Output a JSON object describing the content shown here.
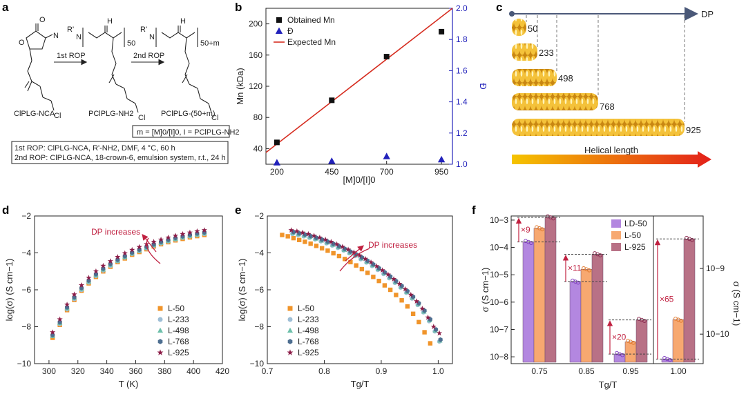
{
  "panels": {
    "a": "a",
    "b": "b",
    "c": "c",
    "d": "d",
    "e": "e",
    "f": "f"
  },
  "scheme": {
    "names": [
      "ClPLG-NCA",
      "PClPLG-NH2",
      "PClPLG-(50+m)"
    ],
    "r1": "1st ROP",
    "r2": "2nd ROP",
    "sub1": "50",
    "sub2": "50+m",
    "eq": "m = [M]0/[I]0,  I = PClPLG-NH2",
    "cond1": "1st ROP: ClPLG-NCA, R'-NH2, DMF, 4 °C, 60 h",
    "cond2": "2nd ROP: ClPLG-NCA, 18-crown-6, emulsion system, r.t., 24 h",
    "rp": "R'",
    "h": "H",
    "n": "N",
    "o": "O",
    "cl": "Cl"
  },
  "colors": {
    "l50": "#f0942a",
    "l233": "#9ebed6",
    "l498": "#6dbfaa",
    "l768": "#4d6e90",
    "l925": "#8c1d48",
    "red": "#d62d20",
    "blue": "#2222bb",
    "ld": "#b387e0",
    "lbar": "#f7a870",
    "rbar": "#b87186",
    "arrow": "#c02040",
    "spring": "#e0a520"
  },
  "chart_data": [
    {
      "id": "b",
      "type": "scatter",
      "xlabel": "[M]0/[I]0",
      "ylabel": "Mn (kDa)",
      "y2label": "Đ",
      "xlim": [
        150,
        1000
      ],
      "ylim": [
        20,
        220
      ],
      "y2lim": [
        1.0,
        2.0
      ],
      "xticks": [
        "200",
        "450",
        "700",
        "950"
      ],
      "yticks": [
        "40",
        "80",
        "120",
        "160",
        "200"
      ],
      "y2ticks": [
        "1.0",
        "1.2",
        "1.4",
        "1.6",
        "1.8",
        "2.0"
      ],
      "series": [
        {
          "name": "Obtained Mn",
          "x": [
            200,
            450,
            700,
            950
          ],
          "y": [
            48,
            102,
            158,
            190
          ]
        },
        {
          "name": "Đ",
          "x": [
            200,
            450,
            700,
            950
          ],
          "y": [
            1.01,
            1.02,
            1.05,
            1.03
          ]
        },
        {
          "name": "Expected Mn",
          "x": [
            150,
            1000
          ],
          "y": [
            35,
            224
          ]
        }
      ]
    },
    {
      "id": "c",
      "type": "diagram",
      "axis": "DP",
      "caption": "Helical length",
      "labels": [
        "50",
        "233",
        "498",
        "768",
        "925"
      ]
    },
    {
      "id": "d",
      "type": "scatter",
      "xlabel": "T (K)",
      "ylabel": "log(σ) (S cm−1)",
      "xlim": [
        290,
        420
      ],
      "ylim": [
        -10,
        -2
      ],
      "xticks": [
        "300",
        "320",
        "340",
        "360",
        "380",
        "400",
        "420"
      ],
      "yticks": [
        "−10",
        "−8",
        "−6",
        "−4",
        "−2"
      ],
      "annotation": "DP increases",
      "legend": [
        "L-50",
        "L-233",
        "L-498",
        "L-768",
        "L-925"
      ],
      "x": [
        302.5,
        307.5,
        312.5,
        317.5,
        322.5,
        327.5,
        332.5,
        337.5,
        342.5,
        347.5,
        352.5,
        357.5,
        362.5,
        367.5,
        372.5,
        377.5,
        382.5,
        387.5,
        392.5,
        397.5,
        402.5,
        407.5
      ],
      "series": [
        {
          "name": "L-50",
          "values": [
            -8.6,
            -7.9,
            -7.1,
            -6.55,
            -6.05,
            -5.65,
            -5.3,
            -5.0,
            -4.75,
            -4.5,
            -4.3,
            -4.1,
            -3.95,
            -3.8,
            -3.65,
            -3.53,
            -3.42,
            -3.32,
            -3.24,
            -3.16,
            -3.09,
            -3.03
          ]
        },
        {
          "name": "L-233",
          "values": [
            -8.5,
            -7.85,
            -7.05,
            -6.5,
            -6.0,
            -5.6,
            -5.25,
            -4.95,
            -4.7,
            -4.45,
            -4.25,
            -4.05,
            -3.9,
            -3.75,
            -3.6,
            -3.48,
            -3.37,
            -3.27,
            -3.18,
            -3.1,
            -3.03,
            -2.97
          ]
        },
        {
          "name": "L-498",
          "values": [
            -8.5,
            -7.8,
            -7.0,
            -6.45,
            -5.95,
            -5.55,
            -5.2,
            -4.9,
            -4.65,
            -4.42,
            -4.22,
            -4.03,
            -3.87,
            -3.72,
            -3.58,
            -3.45,
            -3.34,
            -3.24,
            -3.15,
            -3.07,
            -3.0,
            -2.94
          ]
        },
        {
          "name": "L-768",
          "values": [
            -8.45,
            -7.75,
            -6.95,
            -6.4,
            -5.9,
            -5.5,
            -5.15,
            -4.85,
            -4.6,
            -4.37,
            -4.17,
            -3.98,
            -3.82,
            -3.67,
            -3.53,
            -3.4,
            -3.29,
            -3.19,
            -3.1,
            -3.02,
            -2.95,
            -2.89
          ]
        },
        {
          "name": "L-925",
          "values": [
            -8.3,
            -7.6,
            -6.8,
            -6.25,
            -5.75,
            -5.35,
            -5.0,
            -4.7,
            -4.45,
            -4.22,
            -4.02,
            -3.84,
            -3.68,
            -3.53,
            -3.4,
            -3.28,
            -3.17,
            -3.07,
            -2.98,
            -2.9,
            -2.83,
            -2.77
          ]
        }
      ]
    },
    {
      "id": "e",
      "type": "scatter",
      "xlabel": "Tg/T",
      "ylabel": "log(σ) (S cm−1)",
      "xlim": [
        0.7,
        1.025
      ],
      "ylim": [
        -10,
        -2
      ],
      "xticks": [
        "0.7",
        "0.8",
        "0.9",
        "1.0"
      ],
      "yticks": [
        "−10",
        "−8",
        "−6",
        "−4",
        "−2"
      ],
      "annotation": "DP increases",
      "legend": [
        "L-50",
        "L-233",
        "L-498",
        "L-768",
        "L-925"
      ],
      "series": [
        {
          "name": "L-50",
          "x": [
            0.726,
            0.736,
            0.746,
            0.756,
            0.766,
            0.776,
            0.786,
            0.796,
            0.806,
            0.816,
            0.826,
            0.836,
            0.846,
            0.856,
            0.866,
            0.876,
            0.886,
            0.896,
            0.906,
            0.916,
            0.926,
            0.936,
            0.946,
            0.956,
            0.966,
            0.976,
            0.986
          ],
          "values": [
            -3.03,
            -3.1,
            -3.2,
            -3.3,
            -3.4,
            -3.5,
            -3.62,
            -3.75,
            -3.88,
            -4.02,
            -4.17,
            -4.33,
            -4.5,
            -4.68,
            -4.88,
            -5.08,
            -5.3,
            -5.52,
            -5.76,
            -6.0,
            -6.28,
            -6.57,
            -6.9,
            -7.3,
            -7.75,
            -8.3,
            -8.9
          ]
        },
        {
          "name": "L-233",
          "x": [
            0.744,
            0.754,
            0.764,
            0.774,
            0.784,
            0.794,
            0.804,
            0.814,
            0.824,
            0.834,
            0.844,
            0.854,
            0.864,
            0.874,
            0.884,
            0.894,
            0.904,
            0.914,
            0.924,
            0.934,
            0.944,
            0.954,
            0.964,
            0.974,
            0.984,
            0.994,
            1.002
          ],
          "values": [
            -2.97,
            -3.03,
            -3.1,
            -3.18,
            -3.27,
            -3.37,
            -3.48,
            -3.6,
            -3.73,
            -3.87,
            -4.02,
            -4.17,
            -4.34,
            -4.52,
            -4.71,
            -4.92,
            -5.14,
            -5.37,
            -5.62,
            -5.88,
            -6.16,
            -6.47,
            -6.82,
            -7.22,
            -7.7,
            -8.25,
            -8.8
          ]
        },
        {
          "name": "L-498",
          "x": [
            0.745,
            0.755,
            0.765,
            0.775,
            0.785,
            0.795,
            0.805,
            0.815,
            0.825,
            0.835,
            0.845,
            0.855,
            0.865,
            0.875,
            0.885,
            0.895,
            0.905,
            0.915,
            0.925,
            0.935,
            0.945,
            0.955,
            0.965,
            0.975,
            0.985,
            0.995,
            1.003
          ],
          "values": [
            -2.92,
            -2.99,
            -3.06,
            -3.14,
            -3.23,
            -3.33,
            -3.44,
            -3.56,
            -3.69,
            -3.83,
            -3.98,
            -4.13,
            -4.3,
            -4.48,
            -4.67,
            -4.88,
            -5.1,
            -5.33,
            -5.58,
            -5.84,
            -6.12,
            -6.43,
            -6.78,
            -7.18,
            -7.65,
            -8.2,
            -8.75
          ]
        },
        {
          "name": "L-768",
          "x": [
            0.746,
            0.756,
            0.766,
            0.776,
            0.786,
            0.796,
            0.806,
            0.816,
            0.826,
            0.836,
            0.846,
            0.856,
            0.866,
            0.876,
            0.886,
            0.896,
            0.906,
            0.916,
            0.926,
            0.936,
            0.946,
            0.956,
            0.966,
            0.976,
            0.986,
            0.996,
            1.004
          ],
          "values": [
            -2.87,
            -2.94,
            -3.01,
            -3.09,
            -3.18,
            -3.28,
            -3.39,
            -3.51,
            -3.64,
            -3.78,
            -3.93,
            -4.08,
            -4.25,
            -4.43,
            -4.62,
            -4.83,
            -5.05,
            -5.28,
            -5.53,
            -5.79,
            -6.07,
            -6.38,
            -6.73,
            -7.13,
            -7.6,
            -8.15,
            -8.7
          ]
        },
        {
          "name": "L-925",
          "x": [
            0.742,
            0.752,
            0.762,
            0.772,
            0.782,
            0.792,
            0.802,
            0.812,
            0.822,
            0.832,
            0.842,
            0.852,
            0.862,
            0.872,
            0.882,
            0.892,
            0.902,
            0.912,
            0.922,
            0.932,
            0.942,
            0.952,
            0.962,
            0.972,
            0.982,
            0.992,
            1.002
          ],
          "values": [
            -2.77,
            -2.83,
            -2.9,
            -2.98,
            -3.07,
            -3.17,
            -3.28,
            -3.4,
            -3.53,
            -3.67,
            -3.82,
            -3.97,
            -4.14,
            -4.32,
            -4.51,
            -4.72,
            -4.94,
            -5.17,
            -5.42,
            -5.68,
            -5.96,
            -6.27,
            -6.62,
            -7.02,
            -7.5,
            -8.0,
            -8.35
          ]
        }
      ]
    },
    {
      "id": "f",
      "type": "bar",
      "xlabel": "Tg/T",
      "ylabel": "σ (S cm−1)",
      "y2label": "σ (S cm−1)",
      "categories": [
        "0.75",
        "0.85",
        "0.95",
        "1.00"
      ],
      "legend": [
        "LD-50",
        "L-50",
        "L-925"
      ],
      "yticks": [
        "10−3",
        "10−4",
        "10−5",
        "10−6",
        "10−7",
        "10−8"
      ],
      "y2ticks": [
        "10−9",
        "10−10"
      ],
      "log_ylim_left": [
        -8.25,
        -2.85
      ],
      "log_ylim_right": [
        -10.45,
        -8.2
      ],
      "values_log": [
        [
          -3.8,
          -3.3,
          -2.9
        ],
        [
          -5.25,
          -4.8,
          -4.25
        ],
        [
          -7.9,
          -7.45,
          -6.65
        ],
        [
          -10.38,
          -9.78,
          -8.55
        ]
      ],
      "folds": [
        "×9",
        "×11",
        "×20",
        "×65"
      ]
    }
  ]
}
